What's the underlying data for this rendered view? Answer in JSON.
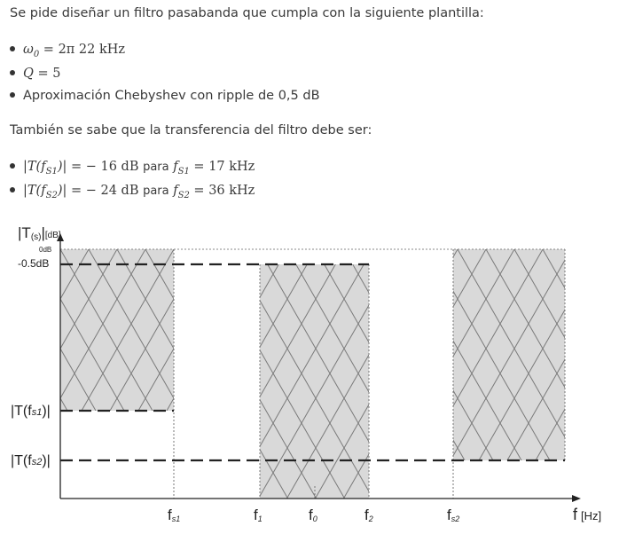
{
  "intro": "Se pide diseñar un filtro pasabanda que cumpla con la siguiente plantilla:",
  "specs": {
    "w0": {
      "symbol": "ω",
      "sub": "0",
      "eq": " = 2π 22 kHz"
    },
    "q": {
      "symbol": "Q",
      "eq": " = 5"
    },
    "approx": "Aproximación Chebyshev con ripple de 0,5 dB"
  },
  "transfer_intro": "También se sabe que la transferencia del filtro debe ser:",
  "conditions": [
    {
      "lhs_open": "|T(f",
      "lhs_sub": "S1",
      "lhs_close": ")|",
      "value": " = − 16 dB",
      "word": "para",
      "f": "f",
      "f_sub": "S1",
      "freq": " = 17 kHz"
    },
    {
      "lhs_open": "|T(f",
      "lhs_sub": "S2",
      "lhs_close": ")|",
      "value": " = − 24 dB",
      "word": "para",
      "f": "f",
      "f_sub": "S2",
      "freq": " = 36 kHz"
    }
  ],
  "diagram": {
    "y_axis_label": "|T",
    "y_axis_label_sub": "(s)",
    "y_axis_label_end": "|",
    "y_axis_unit": "[dB]",
    "level_0db": "0dB",
    "level_ripple": "-0.5dB",
    "level_ts1": "|T(f",
    "level_ts1_sub": "s1",
    "level_ts1_end": ")|",
    "level_ts2": "|T(f",
    "level_ts2_sub": "s2",
    "level_ts2_end": ")|",
    "x_axis_label": "f",
    "x_axis_unit": "[Hz]",
    "freq_labels": [
      {
        "main": "f",
        "sub": "s1"
      },
      {
        "main": "f",
        "sub": "1"
      },
      {
        "main": "f",
        "sub": "0"
      },
      {
        "main": "f",
        "sub": "2"
      },
      {
        "main": "f",
        "sub": "s2"
      }
    ],
    "colors": {
      "hatch_fill": "#d9d9d9",
      "hatch_line": "#7a7a7a",
      "axis": "#222222"
    }
  }
}
